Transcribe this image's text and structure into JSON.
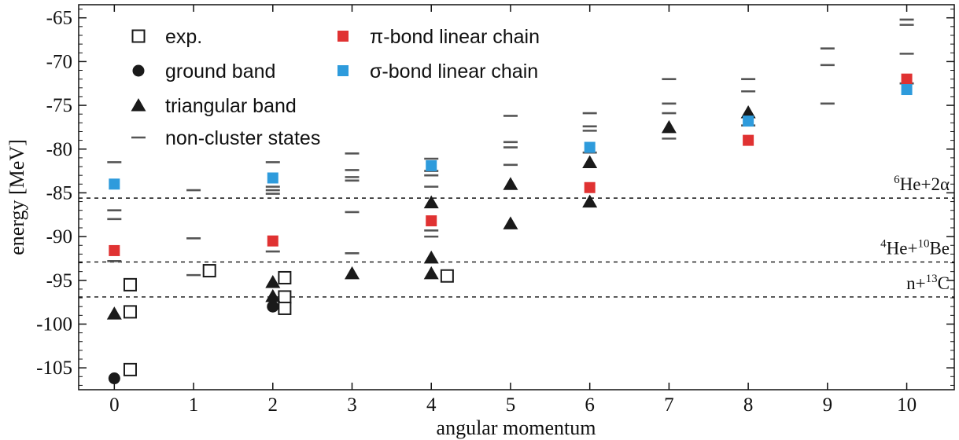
{
  "chart_data": {
    "type": "scatter",
    "xlabel": "angular momentum",
    "ylabel": "energy [MeV]",
    "xlim": [
      -0.45,
      10.6
    ],
    "ylim": [
      -107.5,
      -63.5
    ],
    "x_ticks": [
      0,
      1,
      2,
      3,
      4,
      5,
      6,
      7,
      8,
      9,
      10
    ],
    "x_tick_labels": [
      "0",
      "1",
      "2",
      "3",
      "4",
      "5",
      "6",
      "7",
      "8",
      "9",
      "10"
    ],
    "y_ticks": [
      -105,
      -100,
      -95,
      -90,
      -85,
      -80,
      -75,
      -70,
      -65
    ],
    "y_tick_labels": [
      "-105",
      "-100",
      "-95",
      "-90",
      "-85",
      "-80",
      "-75",
      "-70",
      "-65"
    ],
    "legend_placement": "top-left",
    "legend": [
      {
        "key": "exp",
        "label": "exp."
      },
      {
        "key": "ground",
        "label": "ground band"
      },
      {
        "key": "triangular",
        "label": "triangular band"
      },
      {
        "key": "noncluster",
        "label": "non-cluster states"
      },
      {
        "key": "pi",
        "label": "π-bond linear chain"
      },
      {
        "key": "sigma",
        "label": "σ-bond linear chain"
      }
    ],
    "colors": {
      "pi": "#e03232",
      "sigma": "#2e9bdc",
      "noncluster": "#555555",
      "black": "#1a1a1a"
    },
    "thresholds": [
      {
        "value": -85.6,
        "label_pre": "6",
        "label_main": "He+2α",
        "label_super_mid": "",
        "label_end": ""
      },
      {
        "value": -92.9,
        "label_pre": "4",
        "label_main": "He+",
        "label_super_mid": "10",
        "label_end": "Be"
      },
      {
        "value": -96.9,
        "label_pre": "",
        "label_main": "n+",
        "label_super_mid": "13",
        "label_end": "C"
      }
    ],
    "series": [
      {
        "key": "exp",
        "points": [
          [
            0.2,
            -95.5
          ],
          [
            0.2,
            -98.6
          ],
          [
            0.2,
            -105.2
          ],
          [
            1.2,
            -93.9
          ],
          [
            2.15,
            -94.7
          ],
          [
            2.15,
            -96.9
          ],
          [
            2.15,
            -98.2
          ],
          [
            4.2,
            -94.5
          ]
        ]
      },
      {
        "key": "ground",
        "points": [
          [
            0,
            -106.2
          ],
          [
            2,
            -98.0
          ]
        ]
      },
      {
        "key": "triangular",
        "points": [
          [
            0,
            -98.8
          ],
          [
            2,
            -95.2
          ],
          [
            2,
            -96.8
          ],
          [
            3,
            -94.2
          ],
          [
            4,
            -86.1
          ],
          [
            4,
            -92.4
          ],
          [
            4,
            -94.2
          ],
          [
            5,
            -84.0
          ],
          [
            5,
            -88.5
          ],
          [
            6,
            -81.5
          ],
          [
            6,
            -86.0
          ],
          [
            7,
            -77.5
          ],
          [
            8,
            -75.8
          ]
        ]
      },
      {
        "key": "pi",
        "points": [
          [
            0,
            -91.6
          ],
          [
            2,
            -90.5
          ],
          [
            4,
            -88.2
          ],
          [
            6,
            -84.4
          ],
          [
            8,
            -79.0
          ],
          [
            10,
            -72.0
          ]
        ]
      },
      {
        "key": "sigma",
        "points": [
          [
            0,
            -84.0
          ],
          [
            2,
            -83.3
          ],
          [
            4,
            -81.9
          ],
          [
            6,
            -79.8
          ],
          [
            8,
            -76.8
          ],
          [
            10,
            -73.2
          ]
        ]
      },
      {
        "key": "noncluster",
        "points": [
          [
            0,
            -81.5
          ],
          [
            0,
            -87.0
          ],
          [
            0,
            -88.0
          ],
          [
            0,
            -92.8
          ],
          [
            1,
            -84.7
          ],
          [
            1,
            -90.2
          ],
          [
            1,
            -94.4
          ],
          [
            2,
            -81.5
          ],
          [
            2,
            -84.3
          ],
          [
            2,
            -84.7
          ],
          [
            2,
            -85.1
          ],
          [
            2,
            -91.7
          ],
          [
            3,
            -80.5
          ],
          [
            3,
            -82.4
          ],
          [
            3,
            -83.2
          ],
          [
            3,
            -83.6
          ],
          [
            3,
            -87.2
          ],
          [
            3,
            -91.9
          ],
          [
            4,
            -81.1
          ],
          [
            4,
            -82.5
          ],
          [
            4,
            -83.0
          ],
          [
            4,
            -84.3
          ],
          [
            4,
            -89.3
          ],
          [
            4,
            -90.0
          ],
          [
            5,
            -76.2
          ],
          [
            5,
            -79.2
          ],
          [
            5,
            -79.8
          ],
          [
            5,
            -81.8
          ],
          [
            6,
            -75.9
          ],
          [
            6,
            -77.4
          ],
          [
            6,
            -77.9
          ],
          [
            6,
            -80.4
          ],
          [
            7,
            -72.0
          ],
          [
            7,
            -74.8
          ],
          [
            7,
            -75.9
          ],
          [
            7,
            -78.8
          ],
          [
            8,
            -72.0
          ],
          [
            8,
            -73.4
          ],
          [
            8,
            -77.3
          ],
          [
            9,
            -68.5
          ],
          [
            9,
            -70.4
          ],
          [
            9,
            -74.8
          ],
          [
            10,
            -65.2
          ],
          [
            10,
            -65.8
          ],
          [
            10,
            -69.1
          ],
          [
            10,
            -72.5
          ]
        ]
      }
    ]
  }
}
